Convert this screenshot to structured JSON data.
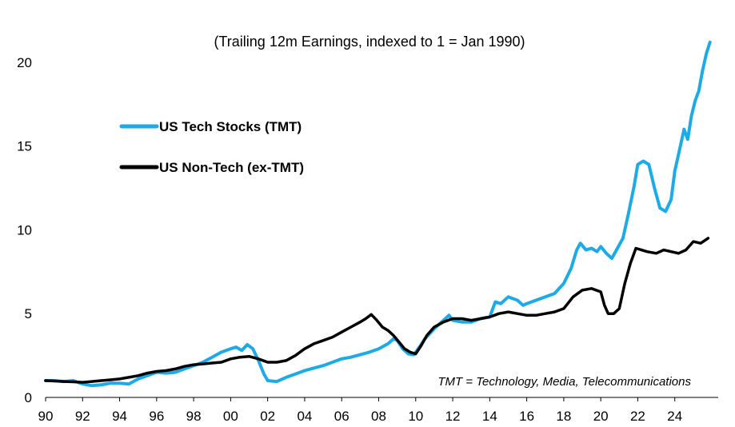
{
  "chart_data": {
    "type": "line",
    "title": "",
    "subtitle": "(Trailing 12m Earnings, indexed to 1 = Jan 1990)",
    "note": "TMT = Technology, Media, Telecommunications",
    "xlabel": "",
    "ylabel": "",
    "xlim": [
      1990,
      2026
    ],
    "ylim": [
      0,
      22
    ],
    "x_ticks": [
      1990,
      1992,
      1994,
      1996,
      1998,
      2000,
      2002,
      2004,
      2006,
      2008,
      2010,
      2012,
      2014,
      2016,
      2018,
      2020,
      2022,
      2024
    ],
    "x_tick_labels": [
      "90",
      "92",
      "94",
      "96",
      "98",
      "00",
      "02",
      "04",
      "06",
      "08",
      "10",
      "12",
      "14",
      "16",
      "18",
      "20",
      "22",
      "24"
    ],
    "y_ticks": [
      0,
      5,
      10,
      15,
      20
    ],
    "y_tick_labels": [
      "0",
      "5",
      "10",
      "15",
      "20"
    ],
    "legend_position": "upper-left",
    "series": [
      {
        "name": "US Tech Stocks (TMT)",
        "color": "#1eaae7",
        "points": [
          [
            1990.0,
            1.0
          ],
          [
            1990.5,
            1.0
          ],
          [
            1991.0,
            0.95
          ],
          [
            1991.5,
            1.0
          ],
          [
            1992.0,
            0.8
          ],
          [
            1992.5,
            0.7
          ],
          [
            1993.0,
            0.75
          ],
          [
            1993.5,
            0.85
          ],
          [
            1994.0,
            0.85
          ],
          [
            1994.5,
            0.8
          ],
          [
            1995.0,
            1.1
          ],
          [
            1995.5,
            1.3
          ],
          [
            1996.0,
            1.5
          ],
          [
            1996.5,
            1.45
          ],
          [
            1997.0,
            1.5
          ],
          [
            1997.5,
            1.7
          ],
          [
            1998.0,
            1.9
          ],
          [
            1998.5,
            2.1
          ],
          [
            1999.0,
            2.4
          ],
          [
            1999.5,
            2.7
          ],
          [
            2000.0,
            2.9
          ],
          [
            2000.3,
            3.0
          ],
          [
            2000.6,
            2.8
          ],
          [
            2000.9,
            3.15
          ],
          [
            2001.2,
            2.9
          ],
          [
            2001.5,
            2.2
          ],
          [
            2001.8,
            1.4
          ],
          [
            2002.0,
            1.0
          ],
          [
            2002.5,
            0.95
          ],
          [
            2003.0,
            1.2
          ],
          [
            2003.5,
            1.4
          ],
          [
            2004.0,
            1.6
          ],
          [
            2004.5,
            1.75
          ],
          [
            2005.0,
            1.9
          ],
          [
            2005.5,
            2.1
          ],
          [
            2006.0,
            2.3
          ],
          [
            2006.5,
            2.4
          ],
          [
            2007.0,
            2.55
          ],
          [
            2007.5,
            2.7
          ],
          [
            2008.0,
            2.9
          ],
          [
            2008.5,
            3.2
          ],
          [
            2008.8,
            3.5
          ],
          [
            2009.0,
            3.4
          ],
          [
            2009.3,
            2.9
          ],
          [
            2009.6,
            2.6
          ],
          [
            2009.9,
            2.55
          ],
          [
            2010.2,
            3.0
          ],
          [
            2010.5,
            3.5
          ],
          [
            2011.0,
            4.1
          ],
          [
            2011.5,
            4.6
          ],
          [
            2011.8,
            4.9
          ],
          [
            2012.0,
            4.6
          ],
          [
            2012.5,
            4.5
          ],
          [
            2013.0,
            4.5
          ],
          [
            2013.5,
            4.7
          ],
          [
            2014.0,
            4.8
          ],
          [
            2014.3,
            5.7
          ],
          [
            2014.6,
            5.6
          ],
          [
            2015.0,
            6.0
          ],
          [
            2015.5,
            5.8
          ],
          [
            2015.8,
            5.5
          ],
          [
            2016.0,
            5.6
          ],
          [
            2016.5,
            5.8
          ],
          [
            2017.0,
            6.0
          ],
          [
            2017.5,
            6.2
          ],
          [
            2018.0,
            6.8
          ],
          [
            2018.4,
            7.7
          ],
          [
            2018.7,
            8.8
          ],
          [
            2018.9,
            9.2
          ],
          [
            2019.2,
            8.8
          ],
          [
            2019.5,
            8.9
          ],
          [
            2019.8,
            8.7
          ],
          [
            2020.0,
            9.0
          ],
          [
            2020.3,
            8.6
          ],
          [
            2020.6,
            8.3
          ],
          [
            2020.9,
            8.9
          ],
          [
            2021.2,
            9.5
          ],
          [
            2021.5,
            11.0
          ],
          [
            2021.8,
            12.6
          ],
          [
            2022.0,
            13.9
          ],
          [
            2022.3,
            14.1
          ],
          [
            2022.6,
            13.9
          ],
          [
            2022.9,
            12.5
          ],
          [
            2023.2,
            11.3
          ],
          [
            2023.5,
            11.1
          ],
          [
            2023.8,
            11.8
          ],
          [
            2024.0,
            13.5
          ],
          [
            2024.3,
            15.0
          ],
          [
            2024.5,
            16.0
          ],
          [
            2024.7,
            15.4
          ],
          [
            2024.9,
            16.8
          ],
          [
            2025.1,
            17.7
          ],
          [
            2025.3,
            18.3
          ],
          [
            2025.5,
            19.5
          ],
          [
            2025.7,
            20.5
          ],
          [
            2025.9,
            21.2
          ]
        ]
      },
      {
        "name": "US Non-Tech (ex-TMT)",
        "color": "#000000",
        "points": [
          [
            1990.0,
            1.0
          ],
          [
            1990.5,
            0.98
          ],
          [
            1991.0,
            0.95
          ],
          [
            1991.5,
            0.93
          ],
          [
            1992.0,
            0.9
          ],
          [
            1992.5,
            0.95
          ],
          [
            1993.0,
            1.0
          ],
          [
            1993.5,
            1.05
          ],
          [
            1994.0,
            1.1
          ],
          [
            1994.5,
            1.2
          ],
          [
            1995.0,
            1.3
          ],
          [
            1995.5,
            1.45
          ],
          [
            1996.0,
            1.55
          ],
          [
            1996.5,
            1.6
          ],
          [
            1997.0,
            1.7
          ],
          [
            1997.5,
            1.85
          ],
          [
            1998.0,
            1.95
          ],
          [
            1998.5,
            2.0
          ],
          [
            1999.0,
            2.05
          ],
          [
            1999.5,
            2.1
          ],
          [
            2000.0,
            2.3
          ],
          [
            2000.5,
            2.4
          ],
          [
            2001.0,
            2.45
          ],
          [
            2001.5,
            2.3
          ],
          [
            2002.0,
            2.1
          ],
          [
            2002.5,
            2.1
          ],
          [
            2003.0,
            2.2
          ],
          [
            2003.5,
            2.5
          ],
          [
            2004.0,
            2.9
          ],
          [
            2004.5,
            3.2
          ],
          [
            2005.0,
            3.4
          ],
          [
            2005.5,
            3.6
          ],
          [
            2006.0,
            3.9
          ],
          [
            2006.5,
            4.2
          ],
          [
            2007.0,
            4.5
          ],
          [
            2007.3,
            4.7
          ],
          [
            2007.6,
            4.95
          ],
          [
            2007.9,
            4.6
          ],
          [
            2008.2,
            4.2
          ],
          [
            2008.5,
            4.0
          ],
          [
            2008.8,
            3.7
          ],
          [
            2009.1,
            3.3
          ],
          [
            2009.4,
            2.9
          ],
          [
            2009.7,
            2.7
          ],
          [
            2010.0,
            2.6
          ],
          [
            2010.3,
            3.1
          ],
          [
            2010.6,
            3.7
          ],
          [
            2011.0,
            4.2
          ],
          [
            2011.5,
            4.5
          ],
          [
            2012.0,
            4.7
          ],
          [
            2012.5,
            4.7
          ],
          [
            2013.0,
            4.6
          ],
          [
            2013.5,
            4.7
          ],
          [
            2014.0,
            4.8
          ],
          [
            2014.5,
            5.0
          ],
          [
            2015.0,
            5.1
          ],
          [
            2015.5,
            5.0
          ],
          [
            2016.0,
            4.9
          ],
          [
            2016.5,
            4.9
          ],
          [
            2017.0,
            5.0
          ],
          [
            2017.5,
            5.1
          ],
          [
            2018.0,
            5.3
          ],
          [
            2018.5,
            6.0
          ],
          [
            2019.0,
            6.4
          ],
          [
            2019.5,
            6.5
          ],
          [
            2020.0,
            6.3
          ],
          [
            2020.2,
            5.5
          ],
          [
            2020.4,
            5.0
          ],
          [
            2020.7,
            5.0
          ],
          [
            2021.0,
            5.3
          ],
          [
            2021.3,
            6.8
          ],
          [
            2021.6,
            8.0
          ],
          [
            2021.9,
            8.9
          ],
          [
            2022.2,
            8.8
          ],
          [
            2022.5,
            8.7
          ],
          [
            2023.0,
            8.6
          ],
          [
            2023.4,
            8.8
          ],
          [
            2023.8,
            8.7
          ],
          [
            2024.2,
            8.6
          ],
          [
            2024.6,
            8.8
          ],
          [
            2025.0,
            9.3
          ],
          [
            2025.4,
            9.2
          ],
          [
            2025.8,
            9.5
          ]
        ]
      }
    ]
  }
}
